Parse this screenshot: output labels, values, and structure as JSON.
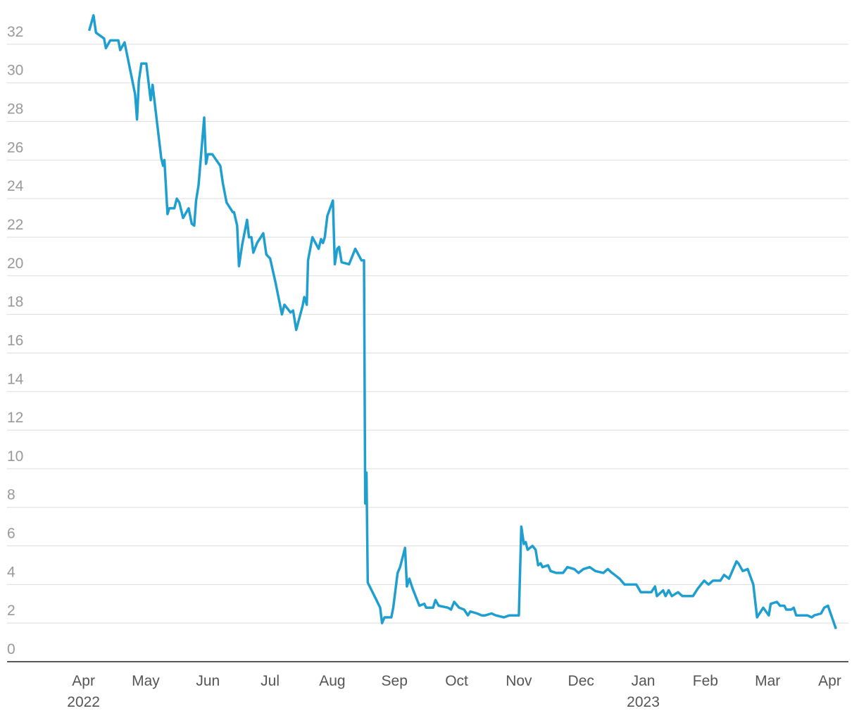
{
  "chart_data": {
    "type": "line",
    "color": "#1f9fcf",
    "grid": true,
    "xlim": [
      -1.23,
      12.3
    ],
    "ylim": [
      0,
      33.2
    ],
    "yticks": [
      0,
      2,
      4,
      6,
      8,
      10,
      12,
      14,
      16,
      18,
      20,
      22,
      24,
      26,
      28,
      30,
      32
    ],
    "xticks": [
      {
        "value": 0,
        "label": "Apr",
        "year": "2022"
      },
      {
        "value": 1,
        "label": "May"
      },
      {
        "value": 2,
        "label": "Jun"
      },
      {
        "value": 3,
        "label": "Jul"
      },
      {
        "value": 4,
        "label": "Aug"
      },
      {
        "value": 5,
        "label": "Sep"
      },
      {
        "value": 6,
        "label": "Oct"
      },
      {
        "value": 7,
        "label": "Nov"
      },
      {
        "value": 8,
        "label": "Dec"
      },
      {
        "value": 9,
        "label": "Jan",
        "year": "2023"
      },
      {
        "value": 10,
        "label": "Feb"
      },
      {
        "value": 11,
        "label": "Mar"
      },
      {
        "value": 12,
        "label": "Apr"
      }
    ],
    "x": [
      0.09,
      0.16,
      0.2,
      0.33,
      0.36,
      0.43,
      0.56,
      0.59,
      0.66,
      0.78,
      0.83,
      0.86,
      0.89,
      0.93,
      1.01,
      1.08,
      1.11,
      1.25,
      1.28,
      1.3,
      1.35,
      1.38,
      1.46,
      1.5,
      1.54,
      1.6,
      1.69,
      1.74,
      1.78,
      1.81,
      1.85,
      1.94,
      1.97,
      2.0,
      2.07,
      2.2,
      2.24,
      2.3,
      2.4,
      2.42,
      2.47,
      2.5,
      2.55,
      2.63,
      2.66,
      2.7,
      2.73,
      2.79,
      2.89,
      2.94,
      3.0,
      3.09,
      3.14,
      3.19,
      3.23,
      3.33,
      3.37,
      3.42,
      3.52,
      3.55,
      3.59,
      3.61,
      3.68,
      3.78,
      3.82,
      3.85,
      3.88,
      3.92,
      4.01,
      4.04,
      4.08,
      4.11,
      4.15,
      4.27,
      4.37,
      4.47,
      4.51,
      4.53,
      4.55,
      4.57,
      4.71,
      4.77,
      4.8,
      4.84,
      4.95,
      4.98,
      5.05,
      5.09,
      5.17,
      5.2,
      5.24,
      5.29,
      5.4,
      5.48,
      5.51,
      5.62,
      5.66,
      5.71,
      5.86,
      5.91,
      5.96,
      6.04,
      6.12,
      6.18,
      6.22,
      6.33,
      6.4,
      6.46,
      6.56,
      6.63,
      6.76,
      6.85,
      7.0,
      7.04,
      7.08,
      7.11,
      7.14,
      7.22,
      7.27,
      7.31,
      7.35,
      7.38,
      7.47,
      7.51,
      7.6,
      7.71,
      7.78,
      7.89,
      7.96,
      8.04,
      8.14,
      8.23,
      8.36,
      8.43,
      8.5,
      8.62,
      8.7,
      8.89,
      8.96,
      9.13,
      9.19,
      9.22,
      9.32,
      9.36,
      9.41,
      9.46,
      9.56,
      9.63,
      9.8,
      9.88,
      9.98,
      10.05,
      10.12,
      10.24,
      10.3,
      10.38,
      10.5,
      10.53,
      10.6,
      10.68,
      10.77,
      10.83,
      10.93,
      11.02,
      11.05,
      11.15,
      11.2,
      11.27,
      11.3,
      11.38,
      11.42,
      11.46,
      11.56,
      11.64,
      11.71,
      11.75,
      11.86,
      11.91,
      11.97,
      12.1
    ],
    "values": [
      32.7,
      33.5,
      32.6,
      32.3,
      31.8,
      32.2,
      32.2,
      31.7,
      32.1,
      30.2,
      29.4,
      28.1,
      30.1,
      31.0,
      31.0,
      29.1,
      29.9,
      26.1,
      25.7,
      26.0,
      23.2,
      23.5,
      23.5,
      24.0,
      23.8,
      23.0,
      23.5,
      22.7,
      22.6,
      23.9,
      24.7,
      28.2,
      25.8,
      26.3,
      26.3,
      25.7,
      24.8,
      23.8,
      23.3,
      23.3,
      22.6,
      20.5,
      21.6,
      22.9,
      22.0,
      22.0,
      21.2,
      21.7,
      22.2,
      21.1,
      20.9,
      19.6,
      18.8,
      18.0,
      18.5,
      18.1,
      18.2,
      17.2,
      18.4,
      18.9,
      18.5,
      20.8,
      22.0,
      21.4,
      21.9,
      21.7,
      22.0,
      23.1,
      23.9,
      20.6,
      21.4,
      21.5,
      20.7,
      20.6,
      21.4,
      20.8,
      20.8,
      8.2,
      9.8,
      4.1,
      3.2,
      2.8,
      2.0,
      2.3,
      2.3,
      2.8,
      4.6,
      4.9,
      5.9,
      3.9,
      4.3,
      3.8,
      2.9,
      3.0,
      2.8,
      2.8,
      3.2,
      2.9,
      2.8,
      2.7,
      3.1,
      2.8,
      2.7,
      2.4,
      2.6,
      2.5,
      2.4,
      2.4,
      2.5,
      2.4,
      2.3,
      2.4,
      2.4,
      7.0,
      6.1,
      6.2,
      5.8,
      6.0,
      5.8,
      5.0,
      5.1,
      4.9,
      5.0,
      4.7,
      4.6,
      4.6,
      4.9,
      4.8,
      4.6,
      4.8,
      4.9,
      4.7,
      4.6,
      4.8,
      4.6,
      4.3,
      4.0,
      4.0,
      3.6,
      3.6,
      3.9,
      3.4,
      3.7,
      3.4,
      3.7,
      3.4,
      3.6,
      3.4,
      3.4,
      3.8,
      4.2,
      4.0,
      4.2,
      4.2,
      4.5,
      4.3,
      5.2,
      5.1,
      4.7,
      4.8,
      4.0,
      2.3,
      2.8,
      2.4,
      3.0,
      3.1,
      2.9,
      2.9,
      2.7,
      2.7,
      2.8,
      2.4,
      2.4,
      2.4,
      2.3,
      2.4,
      2.5,
      2.8,
      2.9,
      1.7
    ]
  }
}
